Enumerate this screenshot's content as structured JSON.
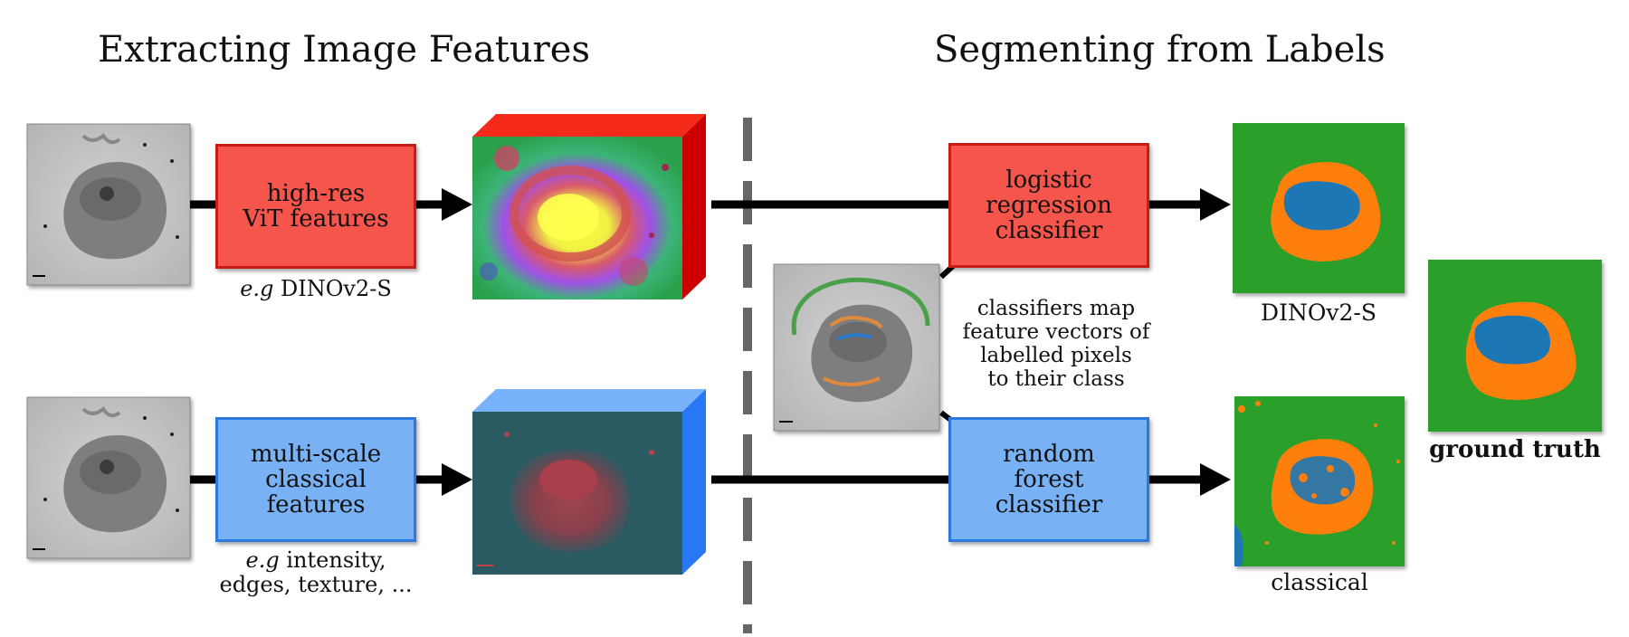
{
  "headings": {
    "left": "Extracting Image Features",
    "right": "Segmenting from Labels"
  },
  "feature_boxes": {
    "vit": "high-res\nViT features",
    "classical": "multi-scale\nclassical\nfeatures"
  },
  "feature_captions": {
    "vit_prefix": "e.g",
    "vit_rest": " DINOv2-S",
    "classical_prefix": "e.g",
    "classical_line1_rest": " intensity,",
    "classical_line2": "edges, texture, ..."
  },
  "classifier_boxes": {
    "logistic": "logistic\nregression\nclassifier",
    "forest": "random\nforest\nclassifier"
  },
  "classifier_note": [
    "classifiers map",
    "feature vectors of",
    "labelled pixels",
    "to their class"
  ],
  "result_labels": {
    "dino": "DINOv2-S",
    "classical": "classical",
    "ground_truth": "ground truth"
  },
  "colors": {
    "red_fill": "#f5554b",
    "red_border": "#c81c14",
    "blue_fill": "#78b2f5",
    "blue_border": "#2a78e0",
    "seg_background": "#2ca02c",
    "seg_cytoplasm": "#ff7f0e",
    "seg_nucleus": "#1f77b4",
    "arrow": "#000000",
    "divider": "#666666"
  }
}
